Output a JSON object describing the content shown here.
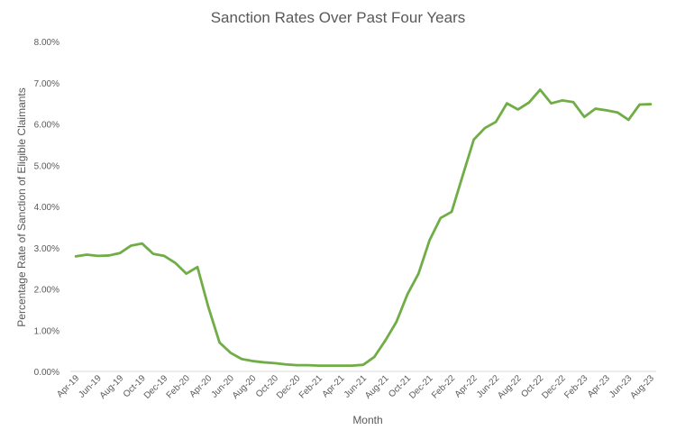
{
  "chart_data": {
    "type": "line",
    "title": "Sanction Rates Over Past Four Years",
    "xlabel": "Month",
    "ylabel": "Percentage Rate of Sanction of Eligible Claimants",
    "ylim": [
      0,
      8
    ],
    "y_ticks": [
      "0.00%",
      "1.00%",
      "2.00%",
      "3.00%",
      "4.00%",
      "5.00%",
      "6.00%",
      "7.00%",
      "8.00%"
    ],
    "x_tick_labels": [
      "Apr-19",
      "Jun-19",
      "Aug-19",
      "Oct-19",
      "Dec-19",
      "Feb-20",
      "Apr-20",
      "Jun-20",
      "Aug-20",
      "Oct-20",
      "Dec-20",
      "Feb-21",
      "Apr-21",
      "Jun-21",
      "Aug-21",
      "Oct-21",
      "Dec-21",
      "Feb-22",
      "Apr-22",
      "Jun-22",
      "Aug-22",
      "Oct-22",
      "Dec-22",
      "Feb-23",
      "Apr-23",
      "Jun-23",
      "Aug-23"
    ],
    "grid": false,
    "line_color": "#70ad47",
    "categories": [
      "Apr-19",
      "May-19",
      "Jun-19",
      "Jul-19",
      "Aug-19",
      "Sep-19",
      "Oct-19",
      "Nov-19",
      "Dec-19",
      "Jan-20",
      "Feb-20",
      "Mar-20",
      "Apr-20",
      "May-20",
      "Jun-20",
      "Jul-20",
      "Aug-20",
      "Sep-20",
      "Oct-20",
      "Nov-20",
      "Dec-20",
      "Jan-21",
      "Feb-21",
      "Mar-21",
      "Apr-21",
      "May-21",
      "Jun-21",
      "Jul-21",
      "Aug-21",
      "Sep-21",
      "Oct-21",
      "Nov-21",
      "Dec-21",
      "Jan-22",
      "Feb-22",
      "Mar-22",
      "Apr-22",
      "May-22",
      "Jun-22",
      "Jul-22",
      "Aug-22",
      "Sep-22",
      "Oct-22",
      "Nov-22",
      "Dec-22",
      "Jan-23",
      "Feb-23",
      "Mar-23",
      "Apr-23",
      "May-23",
      "Jun-23",
      "Jul-23",
      "Aug-23"
    ],
    "values": [
      2.79,
      2.83,
      2.8,
      2.81,
      2.87,
      3.05,
      3.1,
      2.85,
      2.8,
      2.63,
      2.37,
      2.53,
      1.55,
      0.7,
      0.45,
      0.3,
      0.25,
      0.22,
      0.2,
      0.17,
      0.15,
      0.15,
      0.14,
      0.14,
      0.14,
      0.14,
      0.16,
      0.35,
      0.75,
      1.2,
      1.87,
      2.37,
      3.18,
      3.72,
      3.87,
      4.75,
      5.62,
      5.9,
      6.05,
      6.5,
      6.35,
      6.52,
      6.83,
      6.5,
      6.57,
      6.53,
      6.17,
      6.37,
      6.33,
      6.28,
      6.1,
      6.47,
      6.48
    ]
  }
}
